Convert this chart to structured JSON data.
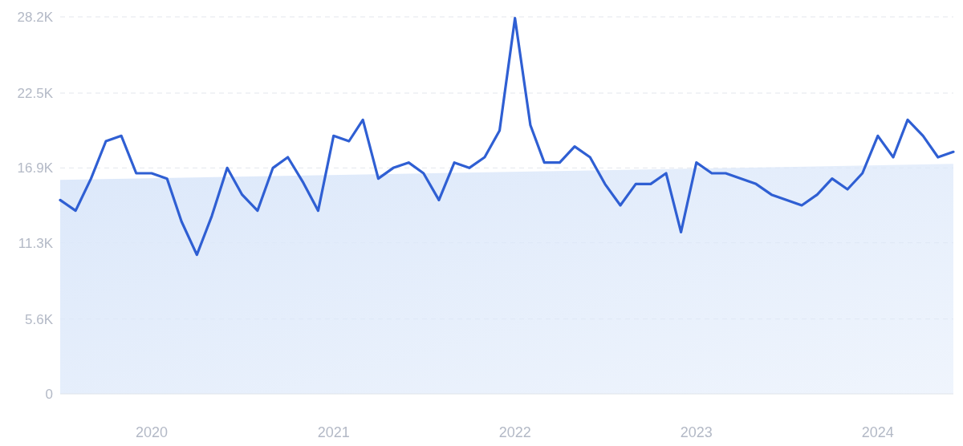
{
  "chart_data": {
    "type": "line",
    "xlim": [
      "2019-07",
      "2024-06"
    ],
    "ylim": [
      0,
      28200
    ],
    "xticks": [
      {
        "value": "2020-01",
        "label": "2020"
      },
      {
        "value": "2021-01",
        "label": "2021"
      },
      {
        "value": "2022-01",
        "label": "2022"
      },
      {
        "value": "2023-01",
        "label": "2023"
      },
      {
        "value": "2024-01",
        "label": "2024"
      }
    ],
    "yticks": [
      0,
      {
        "value": 5600,
        "label": "5.6K"
      },
      {
        "value": 11300,
        "label": "11.3K"
      },
      {
        "value": 16900,
        "label": "16.9K"
      },
      {
        "value": 22500,
        "label": "22.5K"
      },
      {
        "value": 28200,
        "label": "28.2K"
      }
    ],
    "grid": "y",
    "line_style": "solid",
    "marker": "none",
    "x": [
      "2019-07",
      "2019-08",
      "2019-09",
      "2019-10",
      "2019-11",
      "2019-12",
      "2020-01",
      "2020-02",
      "2020-03",
      "2020-04",
      "2020-05",
      "2020-06",
      "2020-07",
      "2020-08",
      "2020-09",
      "2020-10",
      "2020-11",
      "2020-12",
      "2021-01",
      "2021-02",
      "2021-03",
      "2021-04",
      "2021-05",
      "2021-06",
      "2021-07",
      "2021-08",
      "2021-09",
      "2021-10",
      "2021-11",
      "2021-12",
      "2022-01",
      "2022-02",
      "2022-03",
      "2022-04",
      "2022-05",
      "2022-06",
      "2022-07",
      "2022-08",
      "2022-09",
      "2022-10",
      "2022-11",
      "2022-12",
      "2023-01",
      "2023-02",
      "2023-03",
      "2023-04",
      "2023-05",
      "2023-06",
      "2023-07",
      "2023-08",
      "2023-09",
      "2023-10",
      "2023-11",
      "2023-12",
      "2024-01",
      "2024-02",
      "2024-03",
      "2024-04",
      "2024-05",
      "2024-06"
    ],
    "series": [
      {
        "type": "area",
        "color": "#dce8fa",
        "x": [
          "2019-07",
          "2024-06"
        ],
        "values": [
          16000,
          17200
        ]
      },
      {
        "color": "#2f5fd3",
        "values": [
          14500,
          13700,
          16100,
          18900,
          19300,
          16500,
          16500,
          16100,
          12900,
          10400,
          13300,
          16900,
          14900,
          13700,
          16900,
          17700,
          15800,
          13700,
          19300,
          18900,
          20500,
          16100,
          16900,
          17300,
          16500,
          14500,
          17300,
          16900,
          17700,
          19700,
          28100,
          20100,
          17300,
          17300,
          18500,
          17700,
          15700,
          14100,
          15700,
          15700,
          16500,
          12100,
          17300,
          16500,
          16500,
          16100,
          15700,
          14900,
          14500,
          14100,
          14900,
          16100,
          15300,
          16500,
          19300,
          17700,
          20500,
          19300,
          17700,
          18100
        ]
      }
    ]
  }
}
